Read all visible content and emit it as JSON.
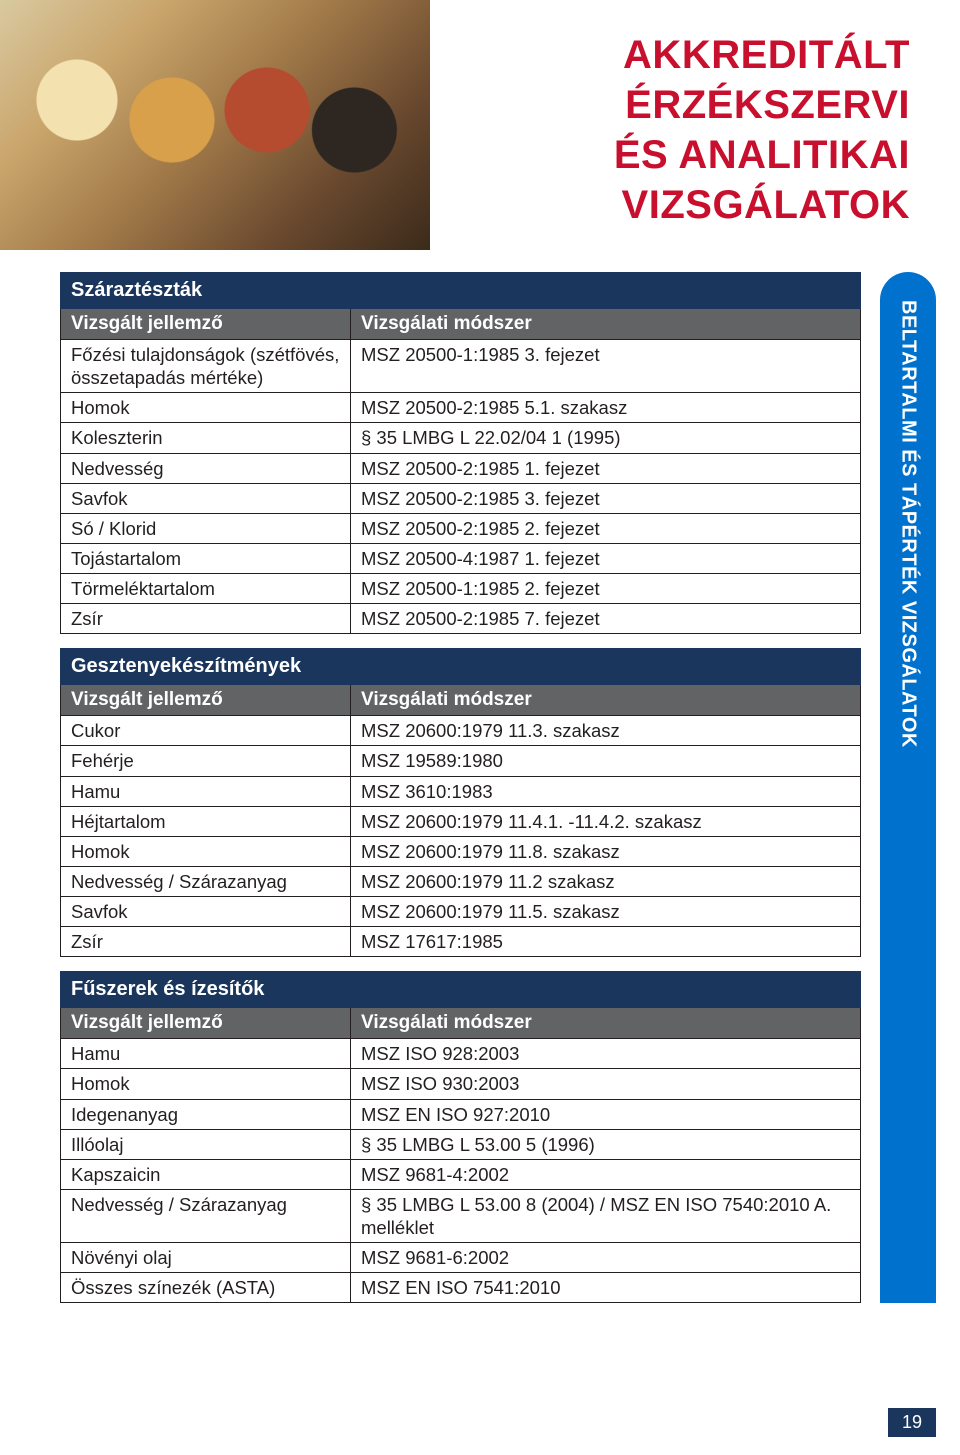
{
  "hero": {
    "title_lines": [
      "AKKREDITÁLT",
      "ÉRZÉKSZERVI",
      "ÉS ANALITIKAI",
      "VIZSGÁLATOK"
    ]
  },
  "sidebar": {
    "label": "BELTARTALMI ÉS TÁPÉRTÉK VIZSGÁLATOK",
    "bg_color": "#0072ce"
  },
  "colors": {
    "brand_red": "#c8102e",
    "section_head_bg": "#1b365d",
    "col_head_bg": "#616365",
    "border": "#231f20",
    "text": "#231f20"
  },
  "tables": [
    {
      "section": "Száraztészták",
      "columns": [
        "Vizsgált jellemző",
        "Vizsgálati módszer"
      ],
      "rows": [
        [
          "Főzési tulajdonságok (szétfövés, összetapadás mértéke)",
          "MSZ 20500-1:1985 3. fejezet"
        ],
        [
          "Homok",
          "MSZ 20500-2:1985 5.1. szakasz"
        ],
        [
          "Koleszterin",
          "§ 35 LMBG L 22.02/04 1 (1995)"
        ],
        [
          "Nedvesség",
          "MSZ 20500-2:1985 1. fejezet"
        ],
        [
          "Savfok",
          "MSZ 20500-2:1985 3. fejezet"
        ],
        [
          "Só / Klorid",
          "MSZ 20500-2:1985 2. fejezet"
        ],
        [
          "Tojástartalom",
          "MSZ 20500-4:1987 1. fejezet"
        ],
        [
          "Törmeléktartalom",
          "MSZ 20500-1:1985 2. fejezet"
        ],
        [
          "Zsír",
          "MSZ 20500-2:1985 7. fejezet"
        ]
      ]
    },
    {
      "section": "Gesztenyekészítmények",
      "columns": [
        "Vizsgált jellemző",
        "Vizsgálati módszer"
      ],
      "rows": [
        [
          "Cukor",
          "MSZ 20600:1979 11.3. szakasz"
        ],
        [
          "Fehérje",
          "MSZ 19589:1980"
        ],
        [
          "Hamu",
          "MSZ 3610:1983"
        ],
        [
          "Héjtartalom",
          "MSZ 20600:1979 11.4.1. -11.4.2. szakasz"
        ],
        [
          "Homok",
          "MSZ 20600:1979 11.8. szakasz"
        ],
        [
          "Nedvesség / Szárazanyag",
          "MSZ 20600:1979 11.2 szakasz"
        ],
        [
          "Savfok",
          "MSZ 20600:1979 11.5. szakasz"
        ],
        [
          "Zsír",
          "MSZ 17617:1985"
        ]
      ]
    },
    {
      "section": "Fűszerek és ízesítők",
      "columns": [
        "Vizsgált jellemző",
        "Vizsgálati módszer"
      ],
      "rows": [
        [
          "Hamu",
          "MSZ ISO 928:2003"
        ],
        [
          "Homok",
          "MSZ ISO 930:2003"
        ],
        [
          "Idegenanyag",
          "MSZ EN ISO 927:2010"
        ],
        [
          "Illóolaj",
          "§ 35 LMBG L 53.00 5 (1996)"
        ],
        [
          "Kapszaicin",
          "MSZ 9681-4:2002"
        ],
        [
          "Nedvesség / Szárazanyag",
          "§ 35 LMBG L 53.00 8 (2004) / MSZ EN ISO 7540:2010 A. melléklet"
        ],
        [
          "Növényi olaj",
          "MSZ 9681-6:2002"
        ],
        [
          "Összes színezék (ASTA)",
          "MSZ EN ISO 7541:2010"
        ]
      ]
    }
  ],
  "page_number": "19"
}
